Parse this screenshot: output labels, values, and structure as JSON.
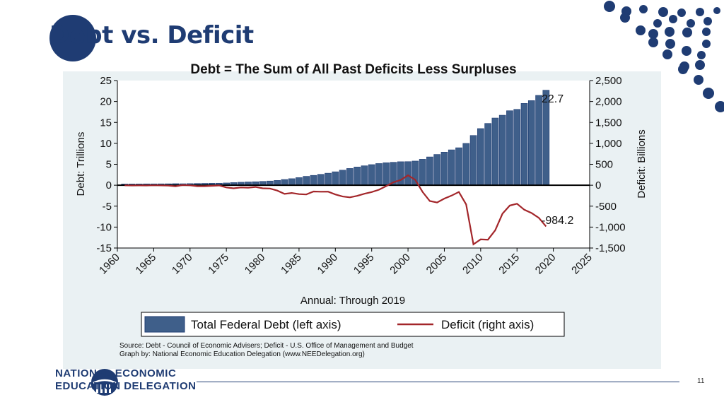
{
  "slide": {
    "title": "Debt vs. Deficit",
    "subtitle": "Debt = The Sum of All Past Deficits Less Surpluses",
    "page_number": "11",
    "org_line1": "NATIONAL ECONOMIC",
    "org_line2": "EDUCATION DELEGATION",
    "accent_color": "#1f3c73"
  },
  "chart_data": {
    "type": "bar+line",
    "xlabel": "Annual: Through 2019",
    "ylabel_left": "Debt: Trillions",
    "ylabel_right": "Deficit: Billions",
    "ylim_left": [
      -15,
      25
    ],
    "ylim_right": [
      -1500,
      2500
    ],
    "xlim": [
      1960,
      2025
    ],
    "x_ticks": [
      1960,
      1965,
      1970,
      1975,
      1980,
      1985,
      1990,
      1995,
      2000,
      2005,
      2010,
      2015,
      2020,
      2025
    ],
    "left_ticks": [
      25,
      20,
      15,
      10,
      5,
      0,
      -5,
      -10,
      -15
    ],
    "right_ticks": [
      "2,500",
      "2,000",
      "1,500",
      "1,000",
      "500",
      "0",
      "-500",
      "-1,000",
      "-1,500"
    ],
    "right_tick_values": [
      2500,
      2000,
      1500,
      1000,
      500,
      0,
      -500,
      -1000,
      -1500
    ],
    "annotations": {
      "debt_last": "22.7",
      "deficit_last": "-984.2"
    },
    "legend": {
      "debt": "Total Federal Debt (left axis)",
      "deficit": "Deficit (right axis)",
      "placement": "bottom"
    },
    "source_line1": "Source: Debt - Council of Economic Advisers; Deficit - U.S. Office of Management and Budget",
    "source_line2": "Graph by: National Economic Education Delegation (www.NEEDelegation.org)",
    "colors": {
      "bar": "#3f5f8a",
      "bar_edge": "#1f3c73",
      "line": "#a3262a",
      "zero_line": "#000000"
    },
    "years": [
      1961,
      1962,
      1963,
      1964,
      1965,
      1966,
      1967,
      1968,
      1969,
      1970,
      1971,
      1972,
      1973,
      1974,
      1975,
      1976,
      1977,
      1978,
      1979,
      1980,
      1981,
      1982,
      1983,
      1984,
      1985,
      1986,
      1987,
      1988,
      1989,
      1990,
      1991,
      1992,
      1993,
      1994,
      1995,
      1996,
      1997,
      1998,
      1999,
      2000,
      2001,
      2002,
      2003,
      2004,
      2005,
      2006,
      2007,
      2008,
      2009,
      2010,
      2011,
      2012,
      2013,
      2014,
      2015,
      2016,
      2017,
      2018,
      2019
    ],
    "series": [
      {
        "name": "Total Federal Debt (left axis)",
        "axis": "left",
        "values": [
          0.29,
          0.3,
          0.31,
          0.32,
          0.32,
          0.33,
          0.34,
          0.37,
          0.35,
          0.38,
          0.41,
          0.44,
          0.47,
          0.48,
          0.54,
          0.63,
          0.71,
          0.78,
          0.83,
          0.91,
          1.0,
          1.14,
          1.37,
          1.56,
          1.82,
          2.12,
          2.35,
          2.6,
          2.87,
          3.21,
          3.6,
          4.0,
          4.35,
          4.64,
          4.92,
          5.18,
          5.37,
          5.48,
          5.61,
          5.63,
          5.77,
          6.2,
          6.76,
          7.35,
          7.9,
          8.45,
          8.95,
          9.99,
          11.88,
          13.53,
          14.76,
          16.05,
          16.72,
          17.79,
          18.12,
          19.54,
          20.21,
          21.46,
          22.7
        ]
      },
      {
        "name": "Deficit (right axis)",
        "axis": "right",
        "values": [
          -3,
          -7,
          -5,
          -6,
          -1,
          -4,
          -9,
          -25,
          3,
          -3,
          -23,
          -23,
          -15,
          -6,
          -53,
          -74,
          -54,
          -59,
          -41,
          -74,
          -79,
          -128,
          -208,
          -185,
          -212,
          -221,
          -150,
          -155,
          -153,
          -221,
          -269,
          -290,
          -255,
          -203,
          -164,
          -107,
          -22,
          69,
          126,
          236,
          128,
          -158,
          -378,
          -413,
          -318,
          -248,
          -161,
          -459,
          -1413,
          -1294,
          -1300,
          -1077,
          -680,
          -485,
          -442,
          -585,
          -665,
          -779,
          -984
        ]
      }
    ]
  }
}
